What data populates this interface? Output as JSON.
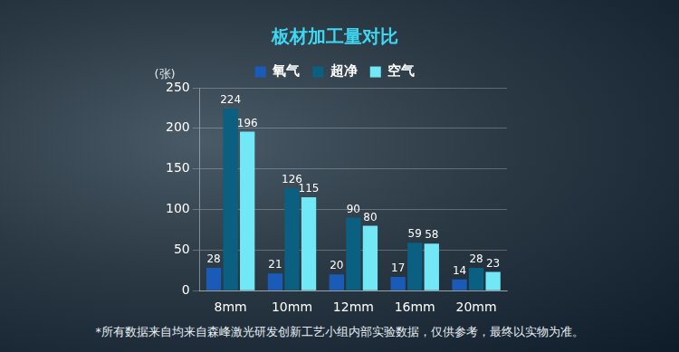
{
  "chart_data": {
    "type": "bar",
    "title": "板材加工量对比",
    "ylabel": "(张)",
    "categories": [
      "8mm",
      "10mm",
      "12mm",
      "16mm",
      "20mm"
    ],
    "series": [
      {
        "name": "氧气",
        "color": "#1b5bb8",
        "values": [
          28,
          21,
          20,
          17,
          14
        ]
      },
      {
        "name": "超净",
        "color": "#0b5f80",
        "values": [
          224,
          126,
          90,
          59,
          28
        ]
      },
      {
        "name": "空气",
        "color": "#72e8f7",
        "values": [
          196,
          115,
          80,
          58,
          23
        ]
      }
    ],
    "ylim": [
      0,
      250
    ],
    "yticks": [
      0,
      50,
      100,
      150,
      200,
      250
    ],
    "grid": true,
    "legend": "top",
    "data_labels": true,
    "footnote": "*所有数据来自均来自森峰激光研发创新工艺小组内部实验数据，仅供参考，最终以实物为准。"
  }
}
